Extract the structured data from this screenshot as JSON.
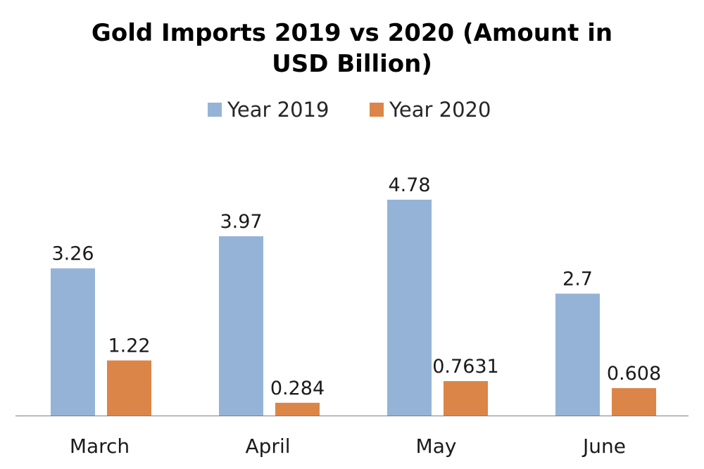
{
  "chart_data": {
    "type": "bar",
    "title_lines": [
      "Gold Imports 2019 vs 2020 (Amount in",
      "USD Billion)"
    ],
    "xlabel": "",
    "ylabel": "",
    "categories": [
      "March",
      "April",
      "May",
      "June"
    ],
    "series": [
      {
        "name": "Year 2019",
        "color": "#95B3D7",
        "values": [
          3.26,
          3.97,
          4.78,
          2.7
        ],
        "labels": [
          "3.26",
          "3.97",
          "4.78",
          "2.7"
        ]
      },
      {
        "name": "Year 2020",
        "color": "#DC8548",
        "values": [
          1.22,
          0.284,
          0.7631,
          0.608
        ],
        "labels": [
          "1.22",
          "0.284",
          "0.7631",
          "0.608"
        ]
      }
    ],
    "ylim": [
      0,
      4.78
    ],
    "grid": false,
    "legend_position": "top",
    "axis_color": "#7F7F7F"
  }
}
